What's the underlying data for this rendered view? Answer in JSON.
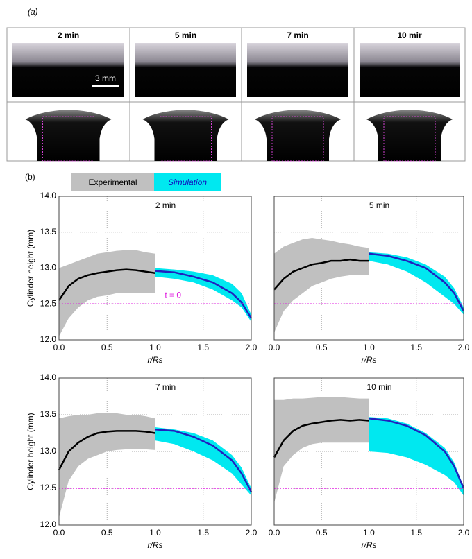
{
  "panel_a": {
    "label": "(a)",
    "times": [
      "2 min",
      "5 min",
      "7 min",
      "10 mir"
    ],
    "scale": "3 mm"
  },
  "panel_b": {
    "label": "(b)",
    "legend": [
      {
        "name": "Experimental",
        "color": "#c0c0c0"
      },
      {
        "name": "Simulation",
        "color": "#00e8f0"
      }
    ]
  },
  "chart_data": [
    {
      "type": "line",
      "title": "2 min",
      "xlabel": "r/Rs",
      "ylabel": "Cylinder height (mm)",
      "xlim": [
        0,
        2
      ],
      "ylim": [
        12,
        14
      ],
      "xticks": [
        {
          "value": 0,
          "label": "0.0"
        },
        {
          "value": 0.5,
          "label": "0.5"
        },
        {
          "value": 1,
          "label": "1.0"
        },
        {
          "value": 1.5,
          "label": "1.5"
        },
        {
          "value": 2,
          "label": "2.0"
        }
      ],
      "yticks": [
        {
          "value": 12,
          "label": "12.0"
        },
        {
          "value": 12.5,
          "label": "12.5"
        },
        {
          "value": 13,
          "label": "13.0"
        },
        {
          "value": 13.5,
          "label": "13.5"
        },
        {
          "value": 14,
          "label": "14.0"
        }
      ],
      "grid": true,
      "reference": {
        "value": 12.5,
        "color": "#e020e0",
        "label": "t = 0"
      },
      "series": [
        {
          "color": "#c0c0c0",
          "line_color": "#000000",
          "x": [
            0,
            0.1,
            0.2,
            0.3,
            0.4,
            0.5,
            0.6,
            0.7,
            0.8,
            0.9,
            1.0
          ],
          "values": [
            12.55,
            12.75,
            12.85,
            12.9,
            12.93,
            12.95,
            12.97,
            12.98,
            12.97,
            12.95,
            12.93
          ],
          "upper": [
            13.0,
            13.05,
            13.1,
            13.15,
            13.2,
            13.22,
            13.24,
            13.25,
            13.25,
            13.22,
            13.2
          ],
          "lower": [
            12.05,
            12.3,
            12.45,
            12.55,
            12.6,
            12.62,
            12.65,
            12.65,
            12.65,
            12.65,
            12.65
          ]
        },
        {
          "color": "#00e8f0",
          "line_color": "#2020c0",
          "x": [
            1.0,
            1.2,
            1.4,
            1.6,
            1.8,
            1.9,
            2.0
          ],
          "values": [
            12.96,
            12.94,
            12.88,
            12.8,
            12.65,
            12.52,
            12.3
          ],
          "upper": [
            13.0,
            12.98,
            12.95,
            12.9,
            12.78,
            12.65,
            12.35
          ],
          "lower": [
            12.88,
            12.85,
            12.8,
            12.7,
            12.55,
            12.45,
            12.25
          ]
        }
      ]
    },
    {
      "type": "line",
      "title": "5 min",
      "xlabel": "r/Rs",
      "xlim": [
        0,
        2
      ],
      "ylim": [
        12,
        14
      ],
      "xticks": [
        {
          "value": 0,
          "label": "0.0"
        },
        {
          "value": 0.5,
          "label": "0.5"
        },
        {
          "value": 1,
          "label": "1.0"
        },
        {
          "value": 1.5,
          "label": "1.5"
        },
        {
          "value": 2,
          "label": "2.0"
        }
      ],
      "grid": true,
      "reference": {
        "value": 12.5,
        "color": "#e020e0"
      },
      "series": [
        {
          "color": "#c0c0c0",
          "line_color": "#000000",
          "x": [
            0,
            0.1,
            0.2,
            0.3,
            0.4,
            0.5,
            0.6,
            0.7,
            0.8,
            0.9,
            1.0
          ],
          "values": [
            12.7,
            12.85,
            12.95,
            13.0,
            13.05,
            13.07,
            13.1,
            13.1,
            13.12,
            13.1,
            13.1
          ],
          "upper": [
            13.2,
            13.3,
            13.35,
            13.4,
            13.42,
            13.4,
            13.38,
            13.35,
            13.33,
            13.3,
            13.28
          ],
          "lower": [
            12.1,
            12.4,
            12.55,
            12.65,
            12.75,
            12.8,
            12.85,
            12.88,
            12.9,
            12.9,
            12.9
          ]
        },
        {
          "color": "#00e8f0",
          "line_color": "#2020c0",
          "x": [
            1.0,
            1.2,
            1.4,
            1.6,
            1.8,
            1.9,
            2.0
          ],
          "values": [
            13.2,
            13.17,
            13.1,
            13.0,
            12.8,
            12.65,
            12.4
          ],
          "upper": [
            13.22,
            13.2,
            13.15,
            13.05,
            12.88,
            12.72,
            12.45
          ],
          "lower": [
            13.1,
            13.05,
            12.95,
            12.8,
            12.6,
            12.5,
            12.35
          ]
        }
      ]
    },
    {
      "type": "line",
      "title": "7 min",
      "xlabel": "r/Rs",
      "ylabel": "Cylinder height (mm)",
      "xlim": [
        0,
        2
      ],
      "ylim": [
        12,
        14
      ],
      "xticks": [
        {
          "value": 0,
          "label": "0.0"
        },
        {
          "value": 0.5,
          "label": "0.5"
        },
        {
          "value": 1,
          "label": "1.0"
        },
        {
          "value": 1.5,
          "label": "1.5"
        },
        {
          "value": 2,
          "label": "2.0"
        }
      ],
      "yticks": [
        {
          "value": 12,
          "label": "12.0"
        },
        {
          "value": 12.5,
          "label": "12.5"
        },
        {
          "value": 13,
          "label": "13.0"
        },
        {
          "value": 13.5,
          "label": "13.5"
        },
        {
          "value": 14,
          "label": "14.0"
        }
      ],
      "grid": true,
      "reference": {
        "value": 12.5,
        "color": "#e020e0"
      },
      "series": [
        {
          "color": "#c0c0c0",
          "line_color": "#000000",
          "x": [
            0,
            0.1,
            0.2,
            0.3,
            0.4,
            0.5,
            0.6,
            0.7,
            0.8,
            0.9,
            1.0
          ],
          "values": [
            12.75,
            13.0,
            13.12,
            13.2,
            13.25,
            13.27,
            13.28,
            13.28,
            13.28,
            13.27,
            13.25
          ],
          "upper": [
            13.45,
            13.48,
            13.5,
            13.5,
            13.52,
            13.52,
            13.52,
            13.5,
            13.5,
            13.48,
            13.45
          ],
          "lower": [
            12.1,
            12.6,
            12.8,
            12.9,
            12.95,
            13.0,
            13.02,
            13.03,
            13.03,
            13.03,
            13.02
          ]
        },
        {
          "color": "#00e8f0",
          "line_color": "#2020c0",
          "x": [
            1.0,
            1.2,
            1.4,
            1.6,
            1.8,
            1.9,
            2.0
          ],
          "values": [
            13.3,
            13.28,
            13.2,
            13.08,
            12.88,
            12.7,
            12.45
          ],
          "upper": [
            13.33,
            13.3,
            13.25,
            13.15,
            12.95,
            12.78,
            12.5
          ],
          "lower": [
            13.15,
            13.1,
            13.0,
            12.88,
            12.7,
            12.55,
            12.4
          ]
        }
      ]
    },
    {
      "type": "line",
      "title": "10 min",
      "xlabel": "r/Rs",
      "xlim": [
        0,
        2
      ],
      "ylim": [
        12,
        14
      ],
      "xticks": [
        {
          "value": 0,
          "label": "0.0"
        },
        {
          "value": 0.5,
          "label": "0.5"
        },
        {
          "value": 1,
          "label": "1.0"
        },
        {
          "value": 1.5,
          "label": "1.5"
        },
        {
          "value": 2,
          "label": "2.0"
        }
      ],
      "grid": true,
      "reference": {
        "value": 12.5,
        "color": "#e020e0"
      },
      "series": [
        {
          "color": "#c0c0c0",
          "line_color": "#000000",
          "x": [
            0,
            0.1,
            0.2,
            0.3,
            0.4,
            0.5,
            0.6,
            0.7,
            0.8,
            0.9,
            1.0
          ],
          "values": [
            12.92,
            13.15,
            13.28,
            13.35,
            13.38,
            13.4,
            13.42,
            13.43,
            13.42,
            13.43,
            13.42
          ],
          "upper": [
            13.7,
            13.7,
            13.72,
            13.72,
            13.73,
            13.74,
            13.74,
            13.74,
            13.73,
            13.72,
            13.72
          ],
          "lower": [
            12.3,
            12.8,
            12.95,
            13.05,
            13.1,
            13.12,
            13.12,
            13.12,
            13.12,
            13.12,
            13.12
          ]
        },
        {
          "color": "#00e8f0",
          "line_color": "#2020c0",
          "x": [
            1.0,
            1.2,
            1.4,
            1.6,
            1.8,
            1.9,
            2.0
          ],
          "values": [
            13.45,
            13.42,
            13.35,
            13.22,
            13.0,
            12.8,
            12.5
          ],
          "upper": [
            13.47,
            13.45,
            13.38,
            13.25,
            13.05,
            12.85,
            12.52
          ],
          "lower": [
            13.0,
            12.98,
            12.92,
            12.82,
            12.68,
            12.58,
            12.4
          ]
        }
      ]
    }
  ]
}
